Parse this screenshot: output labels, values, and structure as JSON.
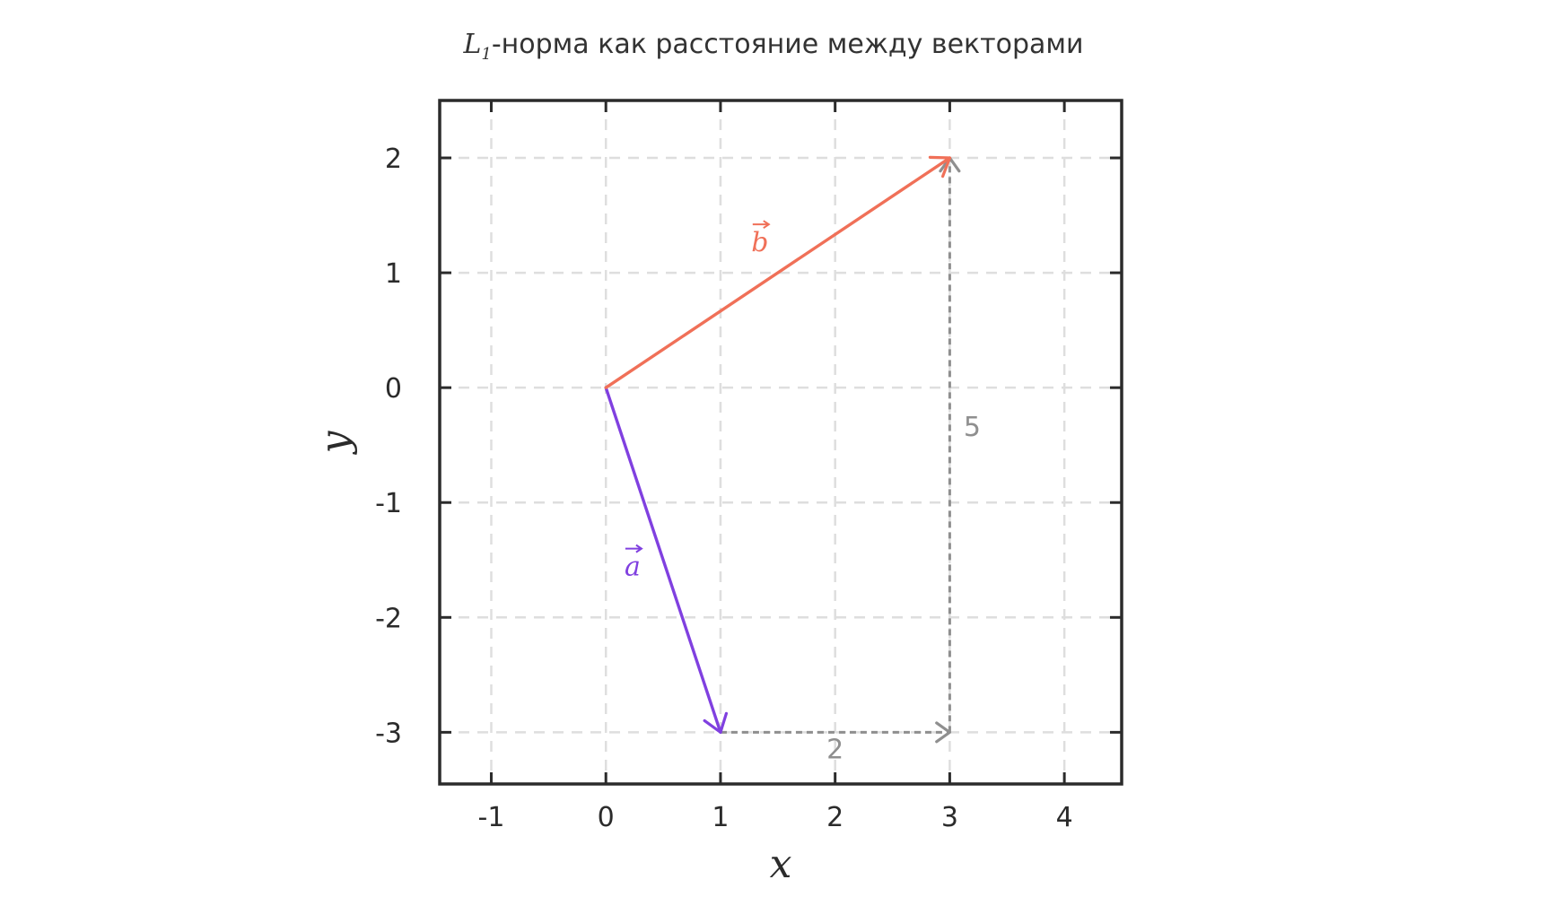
{
  "chart_data": {
    "type": "line",
    "title_math": "L",
    "title_math_sub": "1",
    "title_rest": "-норма как расстояние между векторами",
    "xlabel": "x",
    "ylabel": "y",
    "xlim": [
      -1.45,
      4.5
    ],
    "ylim": [
      -3.45,
      2.5
    ],
    "xticks": [
      -1,
      0,
      1,
      2,
      3,
      4
    ],
    "yticks": [
      -3,
      -2,
      -1,
      0,
      1,
      2
    ],
    "grid": true,
    "vectors": [
      {
        "name": "a",
        "label": "a",
        "from": [
          0,
          0
        ],
        "to": [
          1,
          -3
        ],
        "color": "#8040E0"
      },
      {
        "name": "b",
        "label": "b",
        "from": [
          0,
          0
        ],
        "to": [
          3,
          2
        ],
        "color": "#F07058"
      }
    ],
    "distance_segments": [
      {
        "from": [
          1,
          -3
        ],
        "to": [
          3,
          -3
        ],
        "label": "2",
        "color": "#8f8f8f"
      },
      {
        "from": [
          3,
          -3
        ],
        "to": [
          3,
          2
        ],
        "label": "5",
        "color": "#8f8f8f"
      }
    ]
  }
}
